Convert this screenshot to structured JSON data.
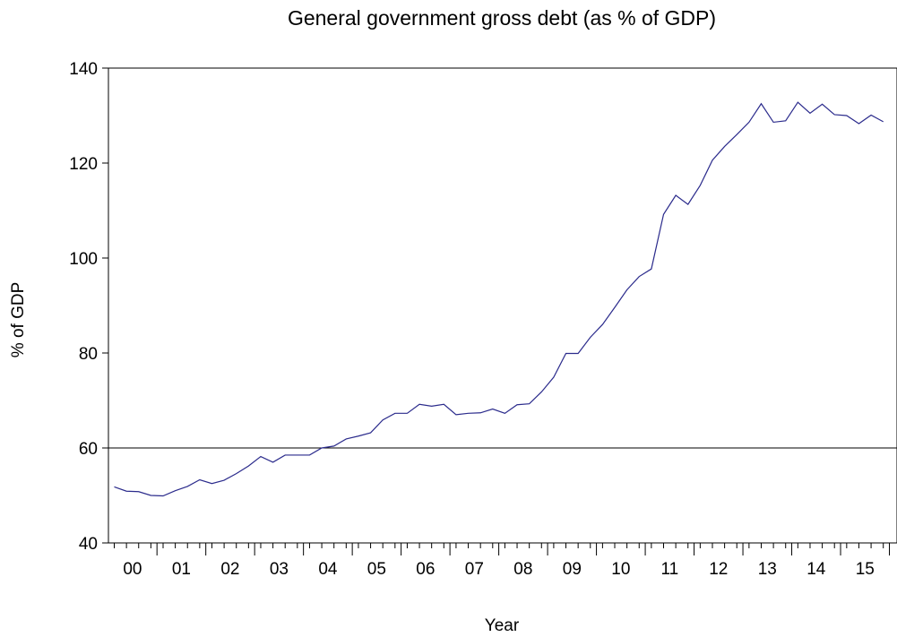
{
  "chart_data": {
    "type": "line",
    "title": "General government gross debt (as % of GDP)",
    "xlabel": "Year",
    "ylabel": "% of GDP",
    "ylim": [
      40,
      140
    ],
    "yticks": [
      40,
      60,
      80,
      100,
      120,
      140
    ],
    "x_start": "2000-Q1",
    "x_frequency": "quarterly",
    "xlim": [
      "2000-Q1",
      "2015-Q4"
    ],
    "x_tick_labels": [
      "00",
      "01",
      "02",
      "03",
      "04",
      "05",
      "06",
      "07",
      "08",
      "09",
      "10",
      "11",
      "12",
      "13",
      "14",
      "15"
    ],
    "reference_line": {
      "y": 60
    },
    "grid": false,
    "legend": "none",
    "series": [
      {
        "color": "#2b2b8c",
        "x": [
          "2000-Q1",
          "2000-Q2",
          "2000-Q3",
          "2000-Q4",
          "2001-Q1",
          "2001-Q2",
          "2001-Q3",
          "2001-Q4",
          "2002-Q1",
          "2002-Q2",
          "2002-Q3",
          "2002-Q4",
          "2003-Q1",
          "2003-Q2",
          "2003-Q3",
          "2003-Q4",
          "2004-Q1",
          "2004-Q2",
          "2004-Q3",
          "2004-Q4",
          "2005-Q1",
          "2005-Q2",
          "2005-Q3",
          "2005-Q4",
          "2006-Q1",
          "2006-Q2",
          "2006-Q3",
          "2006-Q4",
          "2007-Q1",
          "2007-Q2",
          "2007-Q3",
          "2007-Q4",
          "2008-Q1",
          "2008-Q2",
          "2008-Q3",
          "2008-Q4",
          "2009-Q1",
          "2009-Q2",
          "2009-Q3",
          "2009-Q4",
          "2010-Q1",
          "2010-Q2",
          "2010-Q3",
          "2010-Q4",
          "2011-Q1",
          "2011-Q2",
          "2011-Q3",
          "2011-Q4",
          "2012-Q1",
          "2012-Q2",
          "2012-Q3",
          "2012-Q4",
          "2013-Q1",
          "2013-Q2",
          "2013-Q3",
          "2013-Q4",
          "2014-Q1",
          "2014-Q2",
          "2014-Q3",
          "2014-Q4",
          "2015-Q1",
          "2015-Q2",
          "2015-Q3",
          "2015-Q4"
        ],
        "values": [
          51.8,
          50.9,
          50.8,
          50.0,
          49.9,
          51.0,
          51.9,
          53.3,
          52.5,
          53.2,
          54.6,
          56.2,
          58.2,
          57.0,
          58.5,
          58.5,
          58.5,
          60.0,
          60.4,
          61.9,
          62.5,
          63.2,
          65.9,
          67.3,
          67.3,
          69.2,
          68.8,
          69.2,
          67.0,
          67.3,
          67.4,
          68.2,
          67.3,
          69.1,
          69.3,
          71.8,
          74.9,
          79.9,
          79.9,
          83.3,
          86.0,
          89.6,
          93.3,
          96.1,
          97.7,
          109.2,
          113.2,
          111.3,
          115.3,
          120.6,
          123.5,
          126.0,
          128.6,
          132.5,
          128.6,
          128.9,
          132.8,
          130.5,
          132.4,
          130.2,
          130.0,
          128.3,
          130.1,
          128.7
        ]
      }
    ]
  }
}
